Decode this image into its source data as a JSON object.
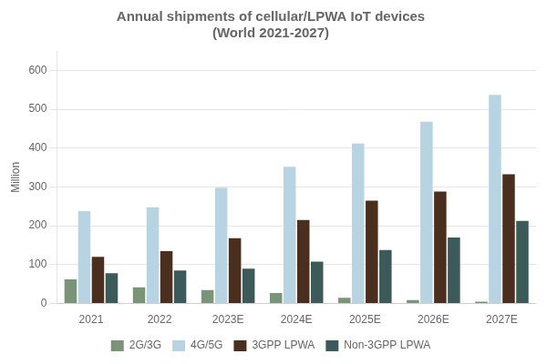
{
  "chart_data": {
    "type": "bar",
    "title": "Annual shipments of cellular/LPWA IoT devices\n(World 2021-2027)",
    "ylabel": "Million",
    "categories": [
      "2021",
      "2022",
      "2023E",
      "2024E",
      "2025E",
      "2026E",
      "2027E"
    ],
    "series": [
      {
        "name": "2G/3G",
        "color": "#7a9478",
        "values": [
          62,
          42,
          35,
          27,
          15,
          9,
          5
        ]
      },
      {
        "name": "4G/5G",
        "color": "#b8d4e3",
        "values": [
          238,
          248,
          298,
          352,
          412,
          468,
          537
        ]
      },
      {
        "name": "3GPP LPWA",
        "color": "#4a2e1e",
        "values": [
          120,
          135,
          168,
          215,
          265,
          288,
          333
        ]
      },
      {
        "name": "Non-3GPP LPWA",
        "color": "#3d5a5a",
        "values": [
          78,
          85,
          90,
          108,
          138,
          170,
          213
        ]
      }
    ],
    "ylim": [
      0,
      650
    ],
    "yticks": [
      0,
      100,
      200,
      300,
      400,
      500,
      600
    ],
    "grid": true,
    "legend": "bottom"
  }
}
